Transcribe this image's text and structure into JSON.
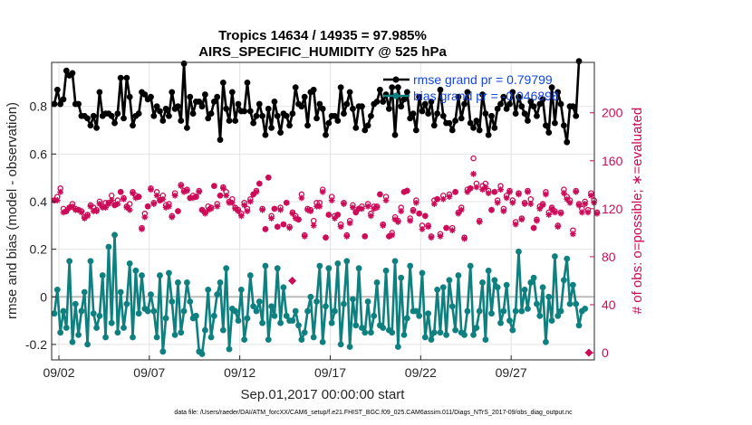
{
  "chart_data": {
    "type": "line",
    "title": "Tropics 14634 / 14935 = 97.985%",
    "subtitle": "AIRS_SPECIFIC_HUMIDITY @ 525 hPa",
    "xlabel": "Sep.01,2017 00:00:00 start",
    "ylabel": "rmse and bias (model - observation)",
    "ylabel_right": "# of obs: o=possible; ∗=evaluated",
    "footnote": "data file: /Users/raeder/DAI/ATM_forcXX/CAM6_setup/f.e21.FHIST_BGC.f09_025.CAM6assim.011/Diags_NTrS_2017-09/obs_diag_output.nc",
    "x_range_days": [
      0.6,
      30.6
    ],
    "ylim": [
      -0.265,
      0.985
    ],
    "ylim_right": [
      -6,
      242
    ],
    "x_ticks": [
      {
        "day": 1,
        "label": "09/02"
      },
      {
        "day": 6,
        "label": "09/07"
      },
      {
        "day": 11,
        "label": "09/12"
      },
      {
        "day": 16,
        "label": "09/17"
      },
      {
        "day": 21,
        "label": "09/22"
      },
      {
        "day": 26,
        "label": "09/27"
      }
    ],
    "y_ticks": [
      "-0.2",
      "0",
      "0.2",
      "0.4",
      "0.6",
      "0.8"
    ],
    "y_tick_values": [
      -0.2,
      0,
      0.2,
      0.4,
      0.6,
      0.8
    ],
    "y_ticks_right": [
      "0",
      "40",
      "80",
      "120",
      "160",
      "200"
    ],
    "y_tick_values_right": [
      0,
      40,
      80,
      120,
      160,
      200
    ],
    "legend": [
      {
        "label": "rmse grand pr = 0.79799",
        "color": "#000000"
      },
      {
        "label": "bias grand pr = -0.046898",
        "color": "#0f8080"
      }
    ],
    "series": [
      {
        "name": "rmse",
        "color": "#000000",
        "values": [
          0.81,
          0.87,
          0.81,
          0.83,
          0.95,
          0.93,
          0.94,
          0.81,
          0.81,
          0.76,
          0.76,
          0.75,
          0.72,
          0.76,
          0.71,
          0.86,
          0.76,
          0.77,
          0.77,
          0.76,
          0.73,
          0.77,
          0.92,
          0.75,
          0.92,
          0.84,
          0.72,
          0.76,
          0.77,
          0.86,
          0.85,
          0.83,
          0.84,
          0.76,
          0.8,
          0.78,
          0.74,
          0.79,
          0.76,
          0.86,
          0.79,
          0.8,
          0.74,
          0.98,
          0.71,
          0.84,
          0.77,
          0.82,
          0.82,
          0.8,
          0.85,
          0.75,
          0.77,
          0.82,
          0.84,
          0.66,
          0.9,
          0.79,
          0.74,
          0.86,
          0.74,
          0.81,
          0.78,
          0.78,
          0.9,
          0.78,
          0.73,
          0.76,
          0.81,
          0.76,
          0.68,
          0.79,
          0.71,
          0.82,
          0.76,
          0.69,
          0.77,
          0.76,
          0.72,
          0.77,
          0.88,
          0.81,
          0.8,
          0.84,
          0.72,
          0.86,
          0.87,
          0.75,
          0.81,
          0.79,
          0.68,
          0.73,
          0.76,
          0.76,
          0.74,
          0.88,
          0.77,
          0.81,
          0.86,
          0.79,
          0.71,
          0.8,
          0.8,
          0.7,
          0.72,
          0.76,
          0.81,
          0.82,
          0.87,
          0.82,
          0.85,
          0.79,
          0.88,
          0.68,
          0.88,
          0.8,
          0.83,
          0.86,
          0.75,
          0.77,
          0.7,
          0.84,
          0.78,
          0.81,
          0.77,
          0.82,
          0.72,
          0.77,
          0.87,
          0.76,
          0.73,
          0.73,
          0.7,
          0.74,
          0.84,
          0.75,
          0.81,
          0.86,
          0.73,
          0.71,
          0.74,
          0.7,
          0.85,
          0.77,
          0.68,
          0.76,
          0.71,
          0.79,
          0.81,
          0.84,
          0.79,
          0.81,
          0.86,
          0.77,
          0.84,
          0.8,
          0.77,
          0.74,
          0.82,
          0.8,
          0.76,
          0.81,
          0.83,
          0.72,
          0.69,
          0.88,
          0.73,
          0.86,
          0.81,
          0.72,
          0.65,
          0.8,
          0.8,
          0.76,
          0.99
        ]
      },
      {
        "name": "bias",
        "color": "#0f8080",
        "values": [
          -0.07,
          0.03,
          -0.15,
          -0.06,
          -0.13,
          0.15,
          -0.19,
          -0.03,
          -0.16,
          -0.06,
          0.02,
          -0.2,
          0.15,
          -0.07,
          -0.13,
          -0.08,
          0.09,
          -0.17,
          0.21,
          -0.11,
          0.26,
          -0.15,
          0.02,
          -0.13,
          -0.03,
          0.14,
          -0.17,
          0.11,
          -0.07,
          0.09,
          -0.05,
          -0.06,
          0.01,
          -0.06,
          -0.17,
          0.09,
          -0.23,
          -0.09,
          0.1,
          -0.02,
          -0.16,
          0.06,
          -0.15,
          -0.06,
          0.06,
          -0.02,
          -0.09,
          -0.08,
          -0.23,
          -0.24,
          -0.14,
          0.03,
          -0.17,
          -0.08,
          0.01,
          0.06,
          -0.14,
          0.12,
          -0.22,
          -0.05,
          -0.06,
          -0.1,
          0.03,
          -0.18,
          -0.09,
          0.09,
          -0.04,
          -0.06,
          -0.02,
          -0.11,
          0.13,
          -0.18,
          -0.04,
          -0.08,
          0.12,
          -0.11,
          0.04,
          -0.08,
          -0.1,
          -0.1,
          -0.06,
          -0.12,
          -0.18,
          -0.15,
          -0.06,
          0.0,
          -0.17,
          -0.02,
          0.13,
          -0.19,
          -0.04,
          0.12,
          -0.11,
          -0.06,
          0.14,
          -0.2,
          -0.03,
          0.15,
          -0.21,
          -0.01,
          -0.12,
          0.12,
          -0.13,
          -0.15,
          -0.02,
          -0.15,
          -0.08,
          0.06,
          -0.12,
          -0.13,
          0.11,
          -0.14,
          -0.15,
          0.15,
          -0.21,
          0.08,
          -0.16,
          -0.09,
          0.13,
          -0.06,
          -0.06,
          -0.08,
          0.1,
          -0.17,
          -0.07,
          -0.18,
          -0.15,
          0.03,
          -0.15,
          0.04,
          -0.16,
          0.07,
          -0.04,
          -0.14,
          0.09,
          -0.15,
          -0.16,
          -0.06,
          0.13,
          -0.16,
          -0.13,
          -0.06,
          0.06,
          -0.18,
          0.11,
          -0.07,
          0.07,
          0.04,
          -0.11,
          -0.06,
          0.05,
          -0.1,
          -0.14,
          -0.06,
          0.19,
          -0.06,
          0.03,
          -0.05,
          0.06,
          0.08,
          -0.03,
          -0.08,
          0.04,
          -0.19,
          0.0,
          -0.1,
          0.17,
          -0.08,
          -0.06,
          0.07,
          0.16,
          -0.03,
          0.05,
          -0.03,
          -0.12,
          -0.06,
          -0.05
        ]
      },
      {
        "name": "possible",
        "color": "#cc0a57",
        "marker": "circle",
        "axis": "right",
        "values": [
          127,
          130,
          137,
          120,
          118,
          121,
          124,
          120,
          119,
          118,
          113,
          115,
          123,
          121,
          119,
          126,
          122,
          125,
          125,
          131,
          123,
          127,
          134,
          129,
          122,
          124,
          134,
          131,
          130,
          104,
          116,
          122,
          137,
          125,
          134,
          127,
          131,
          123,
          124,
          114,
          133,
          118,
          140,
          135,
          136,
          129,
          131,
          130,
          135,
          119,
          117,
          122,
          121,
          139,
          124,
          131,
          138,
          134,
          126,
          128,
          121,
          119,
          116,
          125,
          120,
          128,
          132,
          135,
          141,
          120,
          103,
          146,
          114,
          120,
          105,
          121,
          107,
          125,
          105,
          117,
          114,
          111,
          132,
          98,
          120,
          119,
          110,
          125,
          125,
          136,
          96,
          115,
          130,
          114,
          115,
          107,
          125,
          98,
          110,
          123,
          117,
          120,
          122,
          97,
          124,
          116,
          122,
          122,
          132,
          107,
          130,
          97,
          100,
          113,
          110,
          121,
          134,
          135,
          112,
          119,
          127,
          116,
          106,
          114,
          106,
          97,
          127,
          128,
          99,
          131,
          104,
          132,
          104,
          134,
          117,
          121,
          96,
          136,
          137,
          162,
          141,
          110,
          139,
          141,
          135,
          119,
          134,
          127,
          139,
          120,
          131,
          135,
          127,
          109,
          133,
          112,
          125,
          135,
          128,
          104,
          111,
          122,
          124,
          134,
          117,
          121,
          118,
          106,
          117,
          136,
          130,
          127,
          102,
          135,
          124,
          120,
          126,
          119,
          133,
          127,
          117
        ]
      },
      {
        "name": "evaluated",
        "color": "#cc0a57",
        "marker": "asterisk",
        "axis": "right",
        "values": [
          127,
          127,
          134,
          117,
          118,
          121,
          122,
          119,
          119,
          117,
          112,
          114,
          122,
          118,
          118,
          124,
          121,
          121,
          124,
          127,
          123,
          124,
          134,
          128,
          121,
          119,
          133,
          129,
          130,
          103,
          113,
          122,
          136,
          124,
          131,
          127,
          128,
          121,
          122,
          113,
          131,
          118,
          139,
          134,
          135,
          129,
          129,
          130,
          134,
          119,
          116,
          119,
          120,
          139,
          122,
          131,
          137,
          131,
          125,
          125,
          120,
          118,
          114,
          123,
          118,
          126,
          132,
          134,
          141,
          119,
          103,
          146,
          112,
          120,
          105,
          119,
          107,
          125,
          104,
          116,
          112,
          111,
          129,
          97,
          119,
          118,
          106,
          122,
          122,
          134,
          96,
          115,
          127,
          112,
          115,
          105,
          124,
          97,
          108,
          121,
          117,
          120,
          120,
          97,
          122,
          114,
          120,
          121,
          132,
          106,
          127,
          97,
          98,
          111,
          109,
          118,
          134,
          135,
          110,
          118,
          125,
          116,
          103,
          114,
          105,
          96,
          124,
          128,
          97,
          128,
          104,
          130,
          102,
          134,
          116,
          119,
          95,
          134,
          137,
          149,
          138,
          109,
          136,
          138,
          133,
          119,
          134,
          125,
          136,
          118,
          129,
          134,
          125,
          107,
          132,
          111,
          124,
          134,
          124,
          104,
          110,
          120,
          123,
          132,
          115,
          120,
          117,
          105,
          116,
          133,
          128,
          125,
          99,
          134,
          123,
          117,
          124,
          117,
          131,
          125,
          116
        ]
      },
      {
        "name": "single-markers",
        "color": "#cc0a57",
        "marker": "diamond",
        "axis": "right",
        "points": [
          {
            "day": 13.9,
            "value": 60
          },
          {
            "day": 30.3,
            "value": 0
          }
        ]
      }
    ]
  }
}
